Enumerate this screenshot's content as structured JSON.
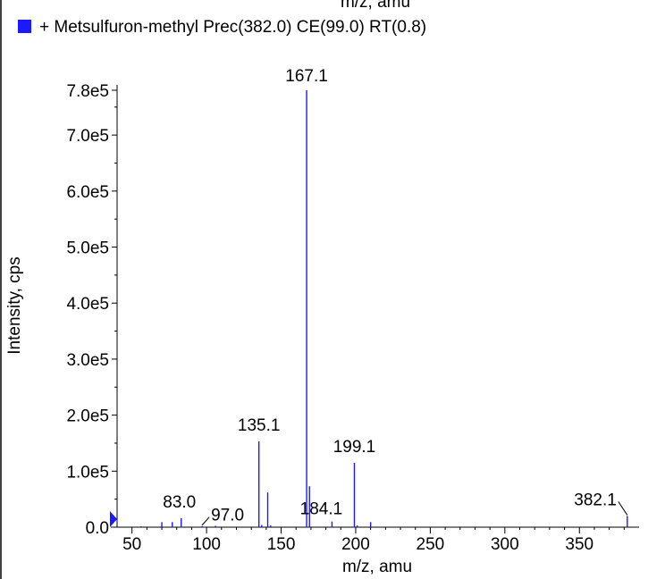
{
  "header": {
    "top_cut_label": "m/z, amu",
    "legend_swatch_color": "#1a1aff",
    "legend_text": "+ Metsulfuron-methyl Prec(382.0) CE(99.0) RT(0.8)"
  },
  "chart_data": {
    "type": "bar",
    "title": "",
    "xlabel": "m/z, amu",
    "ylabel": "Intensity, cps",
    "xlim": [
      40,
      390
    ],
    "ylim": [
      0,
      780000
    ],
    "x_ticks": [
      "50",
      "100",
      "150",
      "200",
      "250",
      "300",
      "350"
    ],
    "x_tick_values": [
      50,
      100,
      150,
      200,
      250,
      300,
      350
    ],
    "y_ticks": [
      "0.0",
      "1.0e5",
      "2.0e5",
      "3.0e5",
      "4.0e5",
      "5.0e5",
      "6.0e5",
      "7.0e5",
      "7.8e5"
    ],
    "y_tick_values": [
      0,
      100000,
      200000,
      300000,
      400000,
      500000,
      600000,
      700000,
      780000
    ],
    "color": "#1a1aff",
    "peaks": [
      {
        "x": 56.0,
        "y": 1500
      },
      {
        "x": 58.0,
        "y": 1200
      },
      {
        "x": 70.0,
        "y": 9000
      },
      {
        "x": 77.0,
        "y": 9000
      },
      {
        "x": 83.0,
        "y": 16000
      },
      {
        "x": 97.0,
        "y": 2000
      },
      {
        "x": 106.0,
        "y": 2500
      },
      {
        "x": 135.1,
        "y": 153000
      },
      {
        "x": 137.0,
        "y": 4000
      },
      {
        "x": 141.0,
        "y": 62000
      },
      {
        "x": 143.0,
        "y": 3000
      },
      {
        "x": 167.1,
        "y": 780000
      },
      {
        "x": 169.0,
        "y": 73000
      },
      {
        "x": 184.1,
        "y": 10000
      },
      {
        "x": 199.1,
        "y": 115000
      },
      {
        "x": 201.0,
        "y": 3000
      },
      {
        "x": 210.0,
        "y": 9000
      },
      {
        "x": 382.1,
        "y": 20000
      }
    ],
    "peak_labels": [
      {
        "text": "83.0",
        "x": 83.0
      },
      {
        "text": "97.0",
        "x": 97.0
      },
      {
        "text": "135.1",
        "x": 135.1
      },
      {
        "text": "167.1",
        "x": 167.1
      },
      {
        "text": "184.1",
        "x": 184.1
      },
      {
        "text": "199.1",
        "x": 199.1
      },
      {
        "text": "382.1",
        "x": 382.1
      }
    ]
  }
}
